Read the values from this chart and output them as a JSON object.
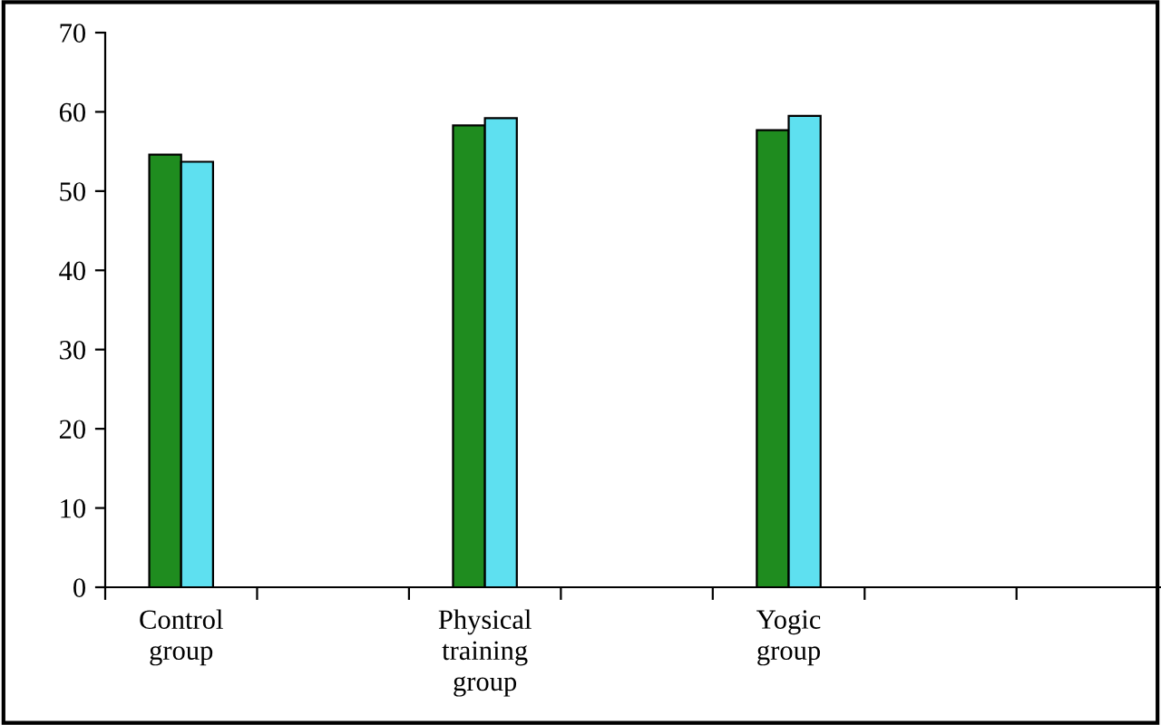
{
  "chart_data": {
    "type": "bar",
    "categories": [
      "Control\ngroup",
      null,
      "Physical\ntraining\ngroup",
      null,
      "Yogic\ngroup",
      null,
      null
    ],
    "series": [
      {
        "color": "#1f8c1f",
        "values": [
          54.6,
          null,
          58.3,
          null,
          57.7,
          null,
          null
        ]
      },
      {
        "color": "#5ee0f0",
        "values": [
          53.7,
          null,
          59.2,
          null,
          59.5,
          null,
          null
        ]
      }
    ],
    "ylim": [
      0,
      70
    ],
    "yticks": [
      0,
      10,
      20,
      30,
      40,
      50,
      60,
      70
    ],
    "grid": false,
    "legend": false
  }
}
